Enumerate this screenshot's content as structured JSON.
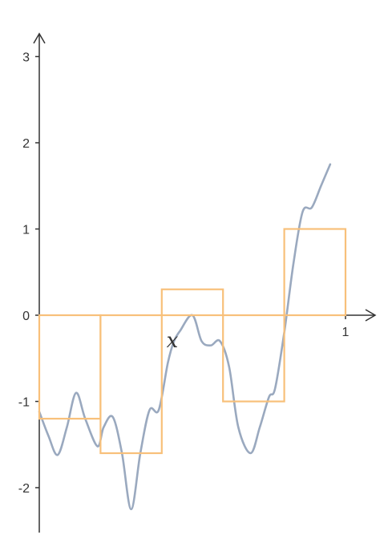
{
  "chart_data": {
    "type": "line",
    "title": "",
    "xlabel": "x",
    "ylabel": "",
    "xlim": [
      0,
      1
    ],
    "ylim": [
      -2.5,
      3.3
    ],
    "grid": false,
    "legend": "none",
    "x_ticks": [
      {
        "value": 1,
        "label": "1"
      }
    ],
    "y_ticks": [
      {
        "value": 3,
        "label": "3"
      },
      {
        "value": 2,
        "label": "2"
      },
      {
        "value": 1,
        "label": "1"
      },
      {
        "value": 0,
        "label": "0"
      },
      {
        "value": -1,
        "label": "-1"
      },
      {
        "value": -2,
        "label": "-2"
      }
    ],
    "series": [
      {
        "kind": "curve",
        "color": "#9aa9bf",
        "x": [
          0,
          0.03,
          0.06,
          0.09,
          0.12,
          0.15,
          0.19,
          0.21,
          0.24,
          0.27,
          0.3,
          0.33,
          0.36,
          0.39,
          0.42,
          0.44,
          0.46,
          0.5,
          0.53,
          0.56,
          0.59,
          0.62,
          0.65,
          0.69,
          0.72,
          0.75,
          0.77,
          0.8,
          0.83,
          0.86,
          0.89,
          0.92,
          0.95
        ],
        "y": [
          -1.12,
          -1.4,
          -1.62,
          -1.3,
          -0.9,
          -1.2,
          -1.52,
          -1.3,
          -1.18,
          -1.6,
          -2.25,
          -1.6,
          -1.1,
          -1.1,
          -0.55,
          -0.3,
          -0.18,
          0,
          -0.3,
          -0.35,
          -0.3,
          -0.6,
          -1.3,
          -1.6,
          -1.3,
          -0.95,
          -0.85,
          -0.2,
          0.6,
          1.2,
          1.25,
          1.5,
          1.75
        ]
      },
      {
        "kind": "step",
        "color": "#f8c07a",
        "segments": [
          {
            "x0": 0,
            "x1": 0.2,
            "y": -1.2
          },
          {
            "x0": 0.2,
            "x1": 0.4,
            "y": -1.6
          },
          {
            "x0": 0.4,
            "x1": 0.6,
            "y": 0.3
          },
          {
            "x0": 0.6,
            "x1": 0.8,
            "y": -1.0
          },
          {
            "x0": 0.8,
            "x1": 1.0,
            "y": 1.0
          }
        ]
      }
    ]
  }
}
